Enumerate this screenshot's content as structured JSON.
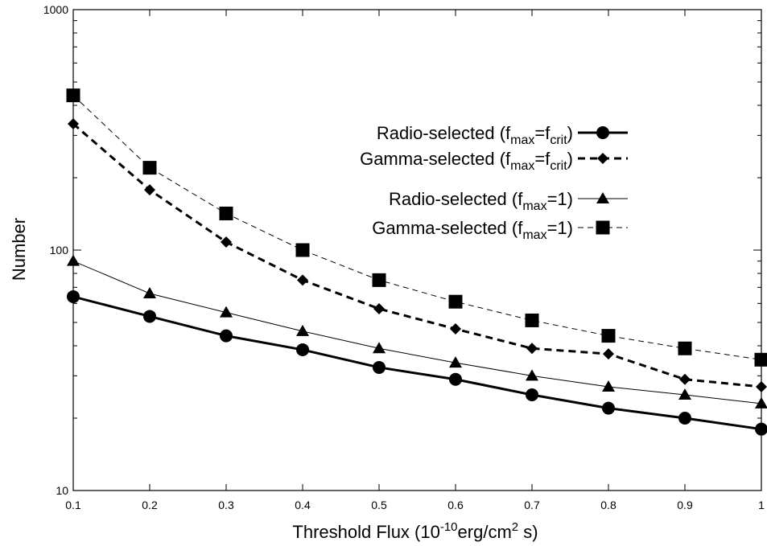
{
  "chart_data": {
    "type": "line",
    "xlabel": {
      "pre": "Threshold Flux (10",
      "sup1": "-10",
      "mid": "erg/cm",
      "sup2": "2",
      "post": " s)"
    },
    "ylabel": "Number",
    "xlim": [
      0.1,
      1
    ],
    "ylim": [
      10,
      1000
    ],
    "y_scale": "log",
    "grid": false,
    "legend_position": "top-right",
    "x_ticks": [
      "0.1",
      "0.2",
      "0.3",
      "0.4",
      "0.5",
      "0.6",
      "0.7",
      "0.8",
      "0.9",
      "1"
    ],
    "y_ticks": [
      "10",
      "100",
      "1000"
    ],
    "x": [
      0.1,
      0.2,
      0.3,
      0.4,
      0.5,
      0.6,
      0.7,
      0.8,
      0.9,
      1.0
    ],
    "series": [
      {
        "key": "radio_crit",
        "legend": {
          "base": "Radio-selected (f",
          "sub1": "max",
          "mid": "=f",
          "sub2": "crit",
          "post": ")"
        },
        "values": [
          64,
          53,
          44,
          38.5,
          32.5,
          29,
          25,
          22,
          20,
          18
        ],
        "marker": "circle",
        "line_style": "solid-thick",
        "color": "#000000"
      },
      {
        "key": "gamma_crit",
        "legend": {
          "base": "Gamma-selected (f",
          "sub1": "max",
          "mid": "=f",
          "sub2": "crit",
          "post": ")"
        },
        "values": [
          335,
          178,
          108,
          75,
          57,
          47,
          39,
          37,
          29,
          27
        ],
        "marker": "diamond",
        "line_style": "dashed-thick",
        "color": "#000000"
      },
      {
        "key": "radio_1",
        "legend": {
          "base": "Radio-selected (f",
          "sub1": "max",
          "mid": "=1)",
          "sub2": "",
          "post": ""
        },
        "values": [
          90,
          66,
          55,
          46,
          39,
          34,
          30,
          27,
          25,
          23
        ],
        "marker": "triangle",
        "line_style": "solid-thin",
        "color": "#000000"
      },
      {
        "key": "gamma_1",
        "legend": {
          "base": "Gamma-selected (f",
          "sub1": "max",
          "mid": "=1)",
          "sub2": "",
          "post": ""
        },
        "values": [
          440,
          220,
          142,
          100,
          75,
          61,
          51,
          44,
          39,
          35
        ],
        "marker": "square",
        "line_style": "dashed-thin",
        "color": "#000000"
      }
    ]
  }
}
